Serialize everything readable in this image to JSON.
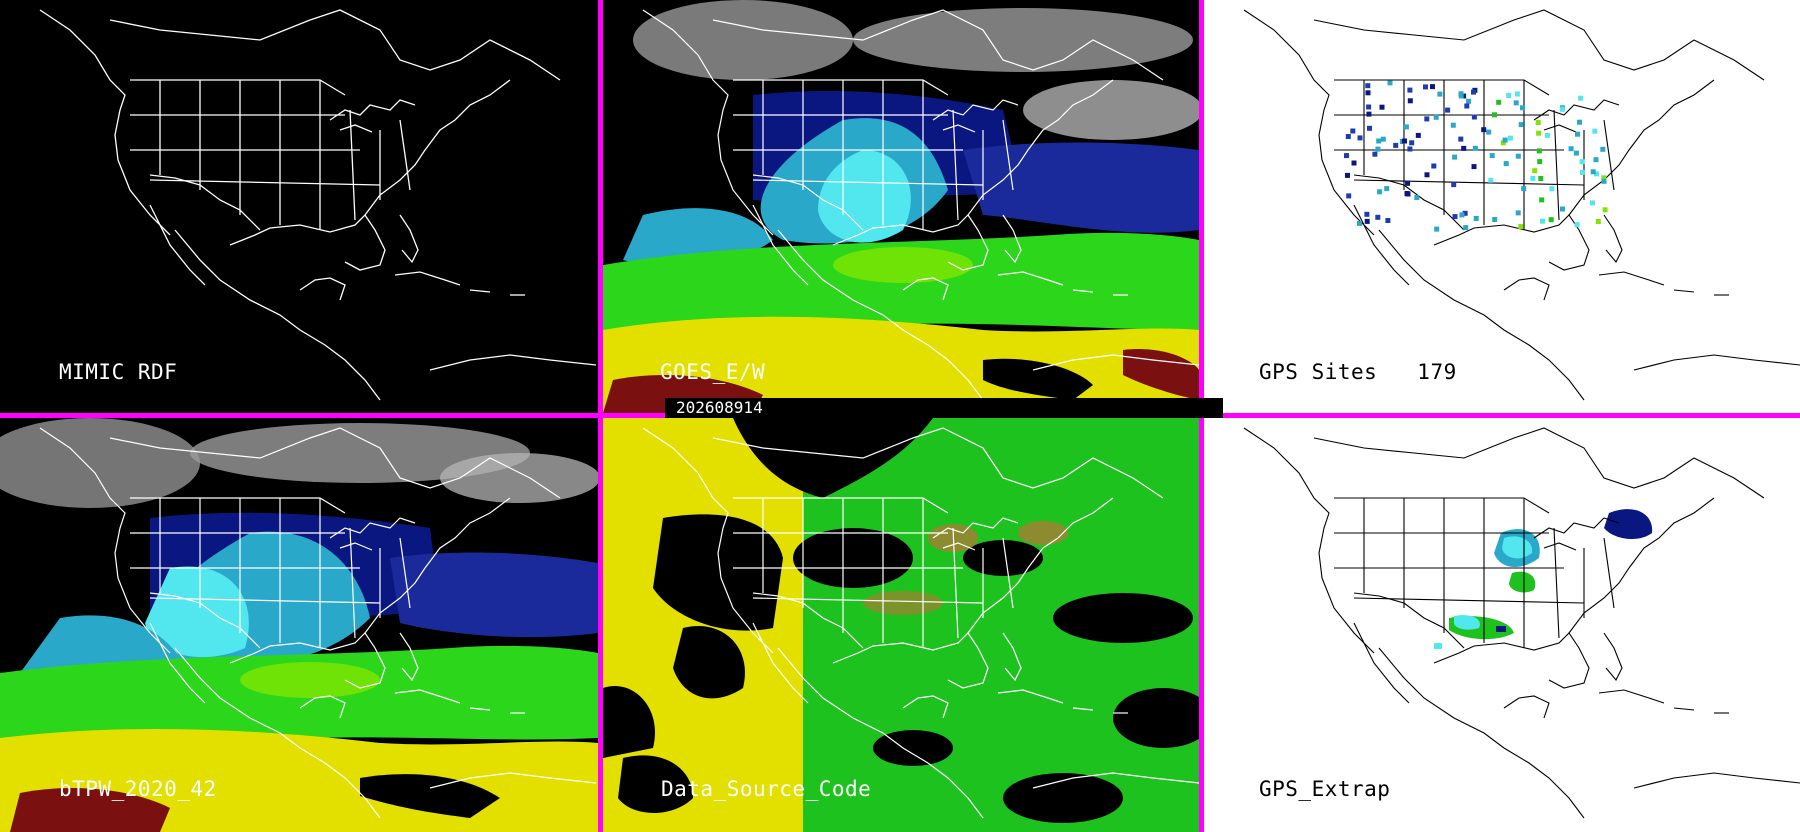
{
  "panels": [
    {
      "id": "p1",
      "label": "MIMIC RDF",
      "theme": "dark"
    },
    {
      "id": "p2",
      "label": "GOES_E/W",
      "theme": "dark"
    },
    {
      "id": "p3",
      "label": "GPS Sites",
      "count": "179",
      "theme": "light"
    },
    {
      "id": "p4",
      "label": "bTPW_2020_42",
      "theme": "dark"
    },
    {
      "id": "p5",
      "label": "Data_Source_Code",
      "theme": "dark"
    },
    {
      "id": "p6",
      "label": "GPS_Extrap",
      "theme": "light"
    }
  ],
  "timestamp": "202608914",
  "colors": {
    "divider": "#ff00ff",
    "map_lines_dark": "#ffffff",
    "map_lines_light": "#000000",
    "pw_scale": [
      "#9a9a9a",
      "#0b1780",
      "#1f3bb0",
      "#2aa8c9",
      "#52e6ef",
      "#2bd61b",
      "#7fe600",
      "#e3e000",
      "#7a1010"
    ],
    "source_yellow": "#e3e000",
    "source_green": "#1ec21e",
    "source_olive": "#8d8b2f"
  }
}
